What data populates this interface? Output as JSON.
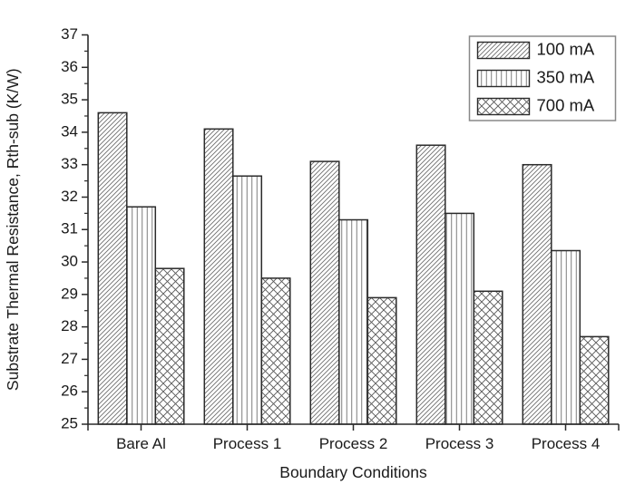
{
  "chart_data": {
    "type": "bar",
    "title": "",
    "xlabel": "Boundary Conditions",
    "ylabel": "Substrate Thermal Resistance, Rth-sub (K/W)",
    "categories": [
      "Bare Al",
      "Process 1",
      "Process 2",
      "Process 3",
      "Process 4"
    ],
    "series": [
      {
        "name": "100 mA",
        "hatch": "diagonal",
        "values": [
          34.6,
          34.1,
          33.1,
          33.6,
          33.0
        ]
      },
      {
        "name": "350 mA",
        "hatch": "vertical",
        "values": [
          31.7,
          32.65,
          31.3,
          31.5,
          30.35
        ]
      },
      {
        "name": "700 mA",
        "hatch": "crosshatch",
        "values": [
          29.8,
          29.5,
          28.9,
          29.1,
          27.7
        ]
      }
    ],
    "ylim": [
      25,
      37
    ],
    "yticks": [
      25,
      26,
      27,
      28,
      29,
      30,
      31,
      32,
      33,
      34,
      35,
      36,
      37
    ],
    "y_major_step": 1,
    "y_minor_step": 0.5,
    "grid": false,
    "legend_position": "top-right",
    "legend_labels": [
      "100 mA",
      "350 mA",
      "700 mA"
    ],
    "colors": {
      "background": "#ffffff",
      "ink": "#1a1a1a",
      "bar_border": "#2b2b2b",
      "hatch_line": "#6e6e6e",
      "axis_line": "#2b2b2b",
      "legend_border": "#888888"
    }
  }
}
